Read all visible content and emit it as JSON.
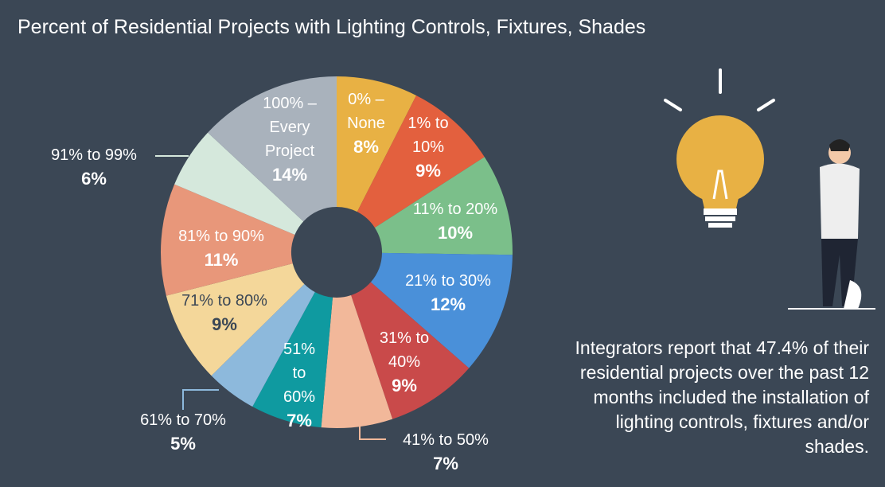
{
  "chart_data": {
    "type": "donut",
    "title": "Percent of Residential Projects with Lighting Controls, Fixtures, Shades",
    "categories": [
      "0% – None",
      "1% to 10%",
      "11% to 20%",
      "21% to 30%",
      "31% to 40%",
      "41% to 50%",
      "51% to 60%",
      "61% to 70%",
      "71% to 80%",
      "81% to 90%",
      "91% to 99%",
      "100% – Every Project"
    ],
    "values": [
      8,
      9,
      10,
      12,
      9,
      7,
      7,
      5,
      9,
      11,
      6,
      14
    ],
    "value_labels": [
      "8%",
      "9%",
      "10%",
      "12%",
      "9%",
      "7%",
      "7%",
      "5%",
      "9%",
      "11%",
      "6%",
      "14%"
    ],
    "colors": [
      "#e8b144",
      "#e3603e",
      "#7bbf8a",
      "#4a90d9",
      "#c94a4a",
      "#f2b89a",
      "#0f9aa0",
      "#8db9dc",
      "#f4d79a",
      "#e8977a",
      "#d5e8dc",
      "#a9b2bc"
    ],
    "note": "Integrators report that 47.4% of their residential projects over the past 12 months included the installation of lighting controls, fixtures and/or shades."
  }
}
